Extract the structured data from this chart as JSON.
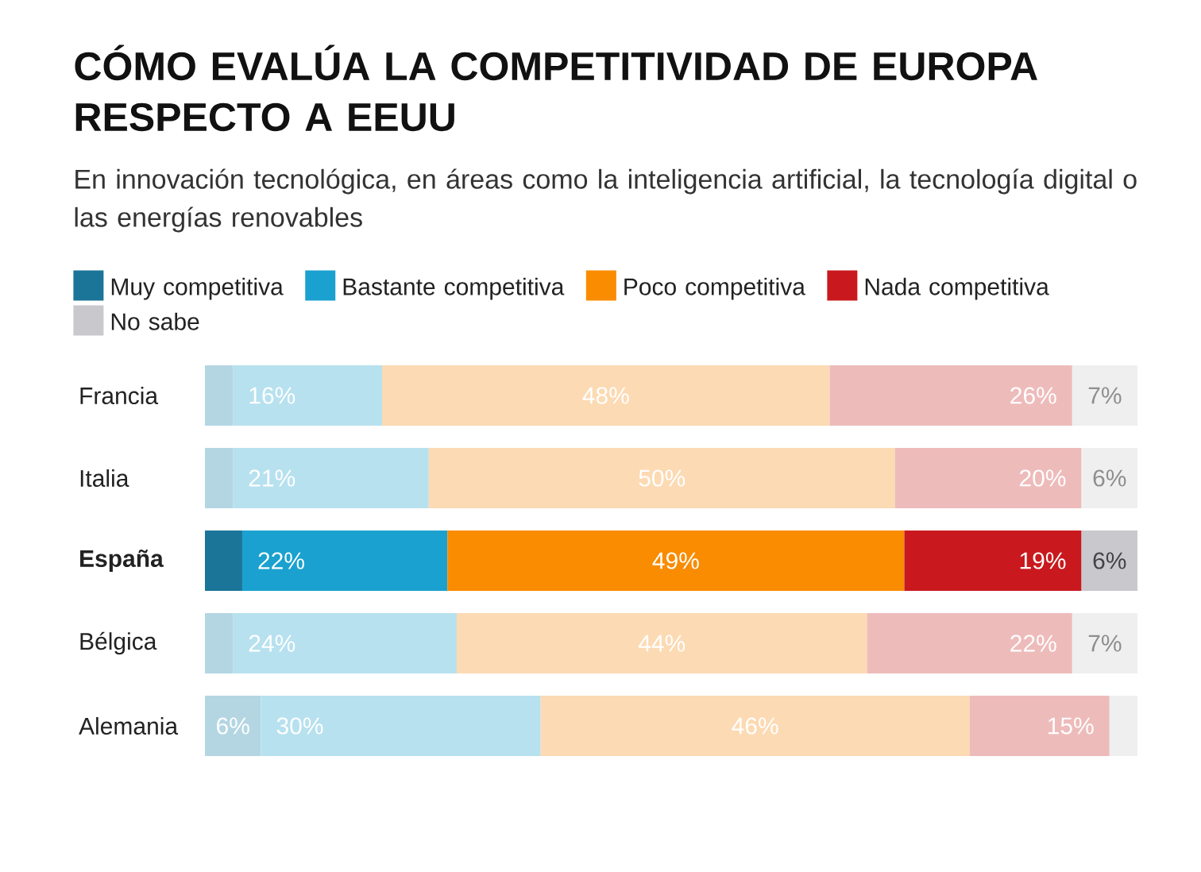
{
  "chart_data": {
    "type": "bar",
    "orientation": "horizontal",
    "stacked": true,
    "title": "CÓMO EVALÚA LA COMPETITIVIDAD DE EUROPA RESPECTO A EEUU",
    "subtitle": "En innovación tecnológica, en áreas como la inteligencia artificial, la tecnología digital o las energías renovables",
    "categories": [
      "Francia",
      "Italia",
      "**España**",
      "Bélgica",
      "Alemania"
    ],
    "xlim": [
      0,
      100
    ],
    "legend": "top",
    "series": [
      {
        "name": "Muy competitiva",
        "color": "#1b7598",
        "colors": [
          "#b4d6e3",
          "#b4d6e3",
          "#1b7598",
          "#b4d6e3",
          "#b4d6e3"
        ],
        "values": [
          3,
          3,
          4,
          3,
          6
        ],
        "value_labels": [
          null,
          null,
          null,
          null,
          "6%"
        ]
      },
      {
        "name": "Bastante competitiva",
        "color": "#1aa1cf",
        "colors": [
          "#b7e1ef",
          "#b7e1ef",
          "#1aa1cf",
          "#b7e1ef",
          "#b7e1ef"
        ],
        "values": [
          16,
          21,
          22,
          24,
          30
        ],
        "value_labels": [
          "16%",
          "21%",
          "22%",
          "24%",
          "30%"
        ]
      },
      {
        "name": "Poco competitiva",
        "color": "#f98c00",
        "colors": [
          "#fcdab3",
          "#fcdab3",
          "#f98c00",
          "#fcdab3",
          "#fcdab3"
        ],
        "values": [
          48,
          50,
          49,
          44,
          46
        ],
        "value_labels": [
          "48%",
          "50%",
          "49%",
          "44%",
          "46%"
        ]
      },
      {
        "name": "Nada competitiva",
        "color": "#c9191e",
        "colors": [
          "#eebbbb",
          "#eebbbb",
          "#c9191e",
          "#eebbbb",
          "#eebbbb"
        ],
        "values": [
          26,
          20,
          19,
          22,
          15
        ],
        "value_labels": [
          "26%",
          "20%",
          "19%",
          "22%",
          "15%"
        ]
      },
      {
        "name": "No sabe",
        "color": "#c9c8cd",
        "colors": [
          "#efefef",
          "#efefef",
          "#c9c8cd",
          "#efefef",
          "#efefef"
        ],
        "values": [
          7,
          6,
          6,
          7,
          3
        ],
        "value_labels": [
          "7%",
          "6%",
          "6%",
          "7%",
          null
        ]
      }
    ]
  }
}
